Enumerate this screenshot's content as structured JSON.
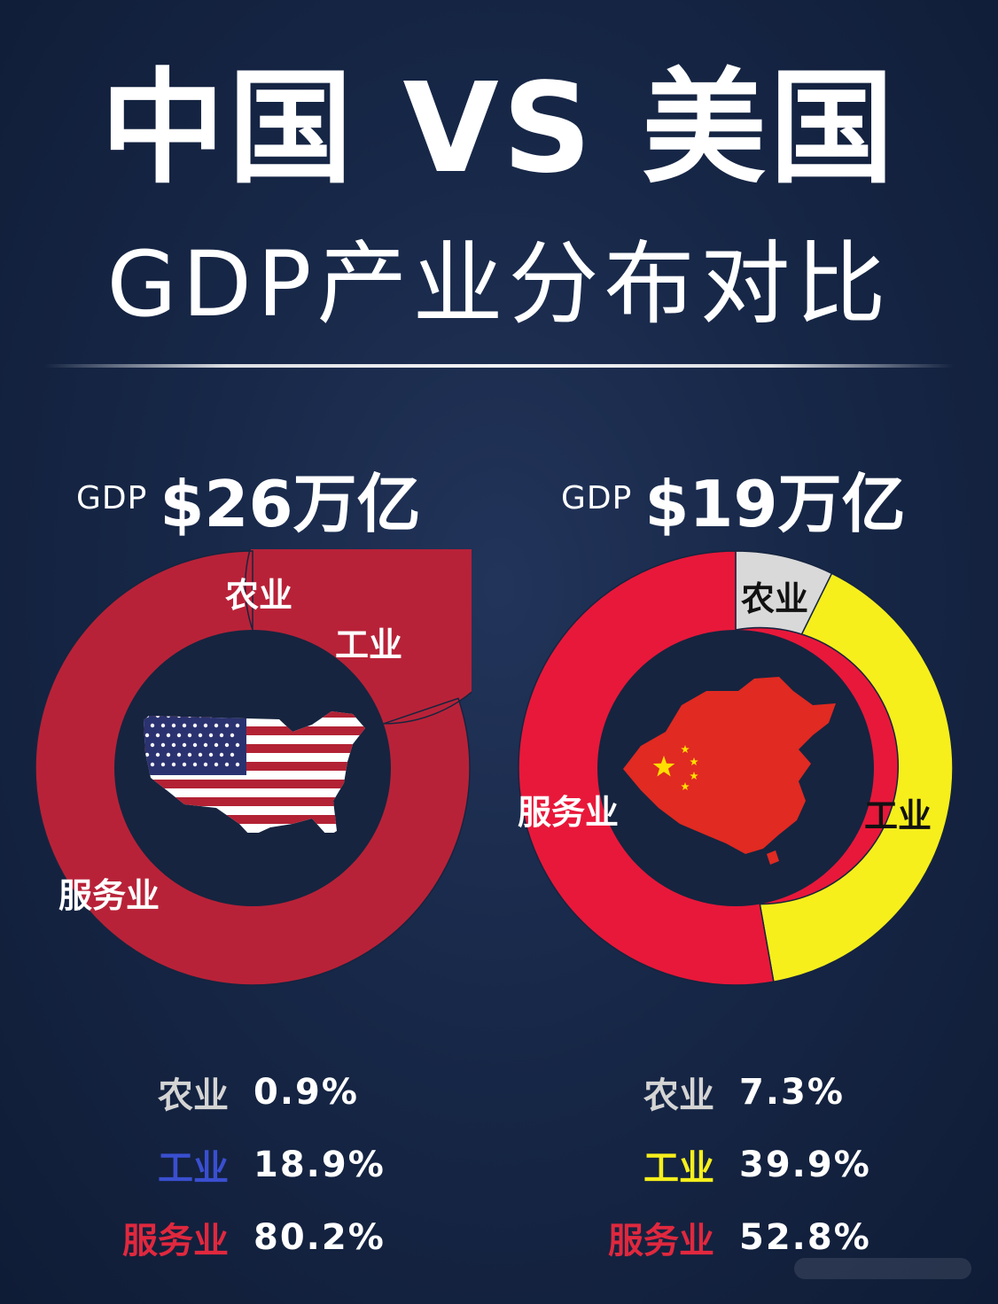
{
  "title": {
    "main": "中国 VS 美国",
    "sub": "GDP产业分布对比"
  },
  "colors": {
    "background": "#172747",
    "usa_agriculture": "#d6d6d6",
    "usa_industry": "#2a2f8c",
    "usa_services": "#b82238",
    "china_agriculture": "#d9d9d9",
    "china_industry": "#f6ef1c",
    "china_services": "#e8183a",
    "legend_agriculture": "#d4d4d4",
    "legend_usa_industry": "#3a4fd0",
    "legend_china_industry": "#f6ef1c",
    "legend_services": "#e0283e"
  },
  "chart_data": [
    {
      "type": "pie",
      "country": "USA",
      "gdp_prefix": "GDP",
      "gdp_value": "$26万亿",
      "icon": "usa-flag-map-icon",
      "categories": [
        "农业",
        "工业",
        "服务业"
      ],
      "values": [
        0.9,
        18.9,
        80.2
      ],
      "labels_pct": [
        "0.9%",
        "18.9%",
        "80.2%"
      ],
      "segment_labels": [
        "农业",
        "工业",
        "服务业"
      ]
    },
    {
      "type": "pie",
      "country": "China",
      "gdp_prefix": "GDP",
      "gdp_value": "$19万亿",
      "icon": "china-flag-map-icon",
      "categories": [
        "农业",
        "工业",
        "服务业"
      ],
      "values": [
        7.3,
        39.9,
        52.8
      ],
      "labels_pct": [
        "7.3%",
        "39.9%",
        "52.8%"
      ],
      "segment_labels": [
        "农业",
        "工业",
        "服务业"
      ]
    }
  ]
}
